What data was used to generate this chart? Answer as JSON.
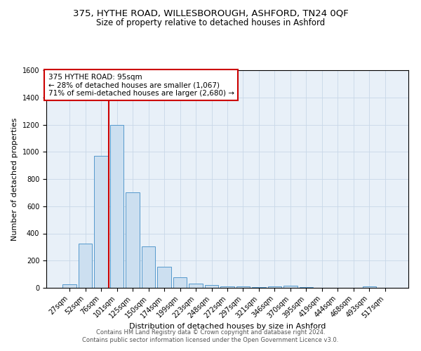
{
  "title": "375, HYTHE ROAD, WILLESBOROUGH, ASHFORD, TN24 0QF",
  "subtitle": "Size of property relative to detached houses in Ashford",
  "xlabel": "Distribution of detached houses by size in Ashford",
  "ylabel": "Number of detached properties",
  "bar_labels": [
    "27sqm",
    "52sqm",
    "76sqm",
    "101sqm",
    "125sqm",
    "150sqm",
    "174sqm",
    "199sqm",
    "223sqm",
    "248sqm",
    "272sqm",
    "297sqm",
    "321sqm",
    "346sqm",
    "370sqm",
    "395sqm",
    "419sqm",
    "444sqm",
    "468sqm",
    "493sqm",
    "517sqm"
  ],
  "bar_values": [
    25,
    325,
    970,
    1195,
    700,
    305,
    155,
    75,
    30,
    20,
    12,
    8,
    5,
    10,
    15,
    3,
    0,
    0,
    0,
    12,
    0
  ],
  "bar_color": "#ccdff0",
  "bar_edge_color": "#5599cc",
  "vline_color": "#cc0000",
  "vline_x_index": 2.5,
  "annotation_text": "375 HYTHE ROAD: 95sqm\n← 28% of detached houses are smaller (1,067)\n71% of semi-detached houses are larger (2,680) →",
  "annotation_box_color": "#ffffff",
  "annotation_box_edge": "#cc0000",
  "ylim": [
    0,
    1600
  ],
  "yticks": [
    0,
    200,
    400,
    600,
    800,
    1000,
    1200,
    1400,
    1600
  ],
  "grid_color": "#c8d8e8",
  "background_color": "#e8f0f8",
  "footer_line1": "Contains HM Land Registry data © Crown copyright and database right 2024.",
  "footer_line2": "Contains public sector information licensed under the Open Government Licence v3.0.",
  "title_fontsize": 9.5,
  "subtitle_fontsize": 8.5,
  "tick_fontsize": 7,
  "label_fontsize": 8,
  "annot_fontsize": 7.5
}
